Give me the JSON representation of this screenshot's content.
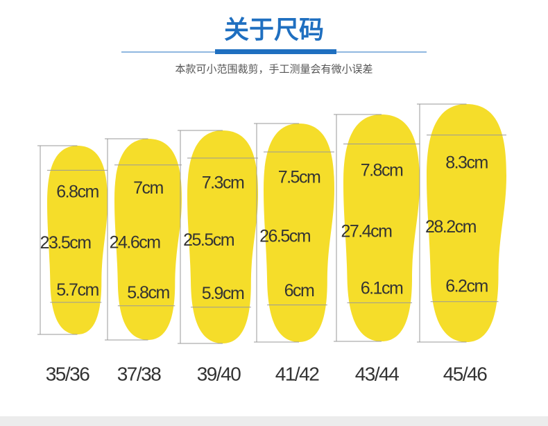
{
  "header": {
    "title": "关于尺码",
    "subtitle": "本款可小范围裁剪，手工测量会有微小误差"
  },
  "insoles": [
    {
      "size": "35/36",
      "forefoot": "6.8cm",
      "length": "23.5cm",
      "heel": "5.7cm"
    },
    {
      "size": "37/38",
      "forefoot": "7cm",
      "length": "24.6cm",
      "heel": "5.8cm"
    },
    {
      "size": "39/40",
      "forefoot": "7.3cm",
      "length": "25.5cm",
      "heel": "5.9cm"
    },
    {
      "size": "41/42",
      "forefoot": "7.5cm",
      "length": "26.5cm",
      "heel": "6cm"
    },
    {
      "size": "43/44",
      "forefoot": "7.8cm",
      "length": "27.4cm",
      "heel": "6.1cm"
    },
    {
      "size": "45/46",
      "forefoot": "8.3cm",
      "length": "28.2cm",
      "heel": "6.2cm"
    }
  ]
}
